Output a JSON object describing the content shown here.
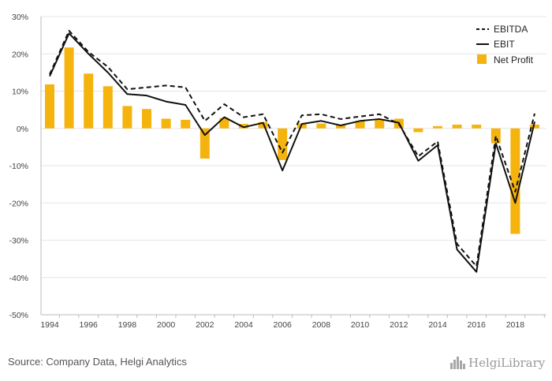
{
  "chart_data": {
    "type": "bar+line",
    "x": [
      1994,
      1995,
      1996,
      1997,
      1998,
      1999,
      2000,
      2001,
      2002,
      2003,
      2004,
      2005,
      2006,
      2007,
      2008,
      2009,
      2010,
      2011,
      2012,
      2013,
      2014,
      2015,
      2016,
      2017,
      2018,
      2019
    ],
    "x_tick_labels": [
      "1994",
      "1996",
      "1998",
      "2000",
      "2002",
      "2004",
      "2006",
      "2008",
      "2010",
      "2012",
      "2014",
      "2016",
      "2018"
    ],
    "y_tick_labels": [
      "30%",
      "20%",
      "10%",
      "0%",
      "-10%",
      "-20%",
      "-30%",
      "-40%",
      "-50%"
    ],
    "ylim": [
      -50,
      30
    ],
    "y_unit": "%",
    "grid": "horizontal",
    "legend_position": "top-right",
    "series": [
      {
        "name": "EBITDA",
        "kind": "line",
        "style": "dashed",
        "color": "#111111",
        "values": [
          14.5,
          26.2,
          20.5,
          16.5,
          10.5,
          11.0,
          11.5,
          11.0,
          2.0,
          6.5,
          3.0,
          3.8,
          -6.5,
          3.5,
          3.8,
          2.5,
          3.2,
          3.8,
          1.2,
          -7.5,
          -3.5,
          -31.0,
          -37.0,
          -2.0,
          -17.0,
          4.0
        ]
      },
      {
        "name": "EBIT",
        "kind": "line",
        "style": "solid",
        "color": "#111111",
        "values": [
          14.0,
          25.5,
          20.0,
          15.0,
          9.2,
          8.8,
          7.2,
          6.3,
          -1.8,
          3.0,
          0.3,
          1.5,
          -11.3,
          1.2,
          2.0,
          0.8,
          2.0,
          2.5,
          1.5,
          -8.7,
          -4.5,
          -32.5,
          -38.5,
          -4.0,
          -20.0,
          1.8
        ]
      },
      {
        "name": "Net Profit",
        "kind": "bar",
        "color": "#f5b30e",
        "values": [
          11.8,
          21.7,
          14.7,
          11.3,
          6.0,
          5.2,
          2.6,
          2.3,
          -8.1,
          2.8,
          1.2,
          1.7,
          -8.5,
          1.3,
          1.3,
          0.8,
          2.0,
          2.3,
          2.6,
          -1.0,
          0.6,
          1.0,
          1.0,
          -4.0,
          -28.3,
          1.0
        ]
      }
    ]
  },
  "legend": {
    "items": [
      {
        "label": "EBITDA"
      },
      {
        "label": "EBIT"
      },
      {
        "label": "Net Profit"
      }
    ]
  },
  "footer": {
    "source": "Source: Company Data, Helgi Analytics",
    "brand": "HelgiLibrary",
    "brand_icon": "bar-chart-logo-icon"
  },
  "colors": {
    "bar": "#f5b30e",
    "line": "#111111",
    "grid": "#e6e6e6",
    "axis": "#bbbbbb"
  }
}
